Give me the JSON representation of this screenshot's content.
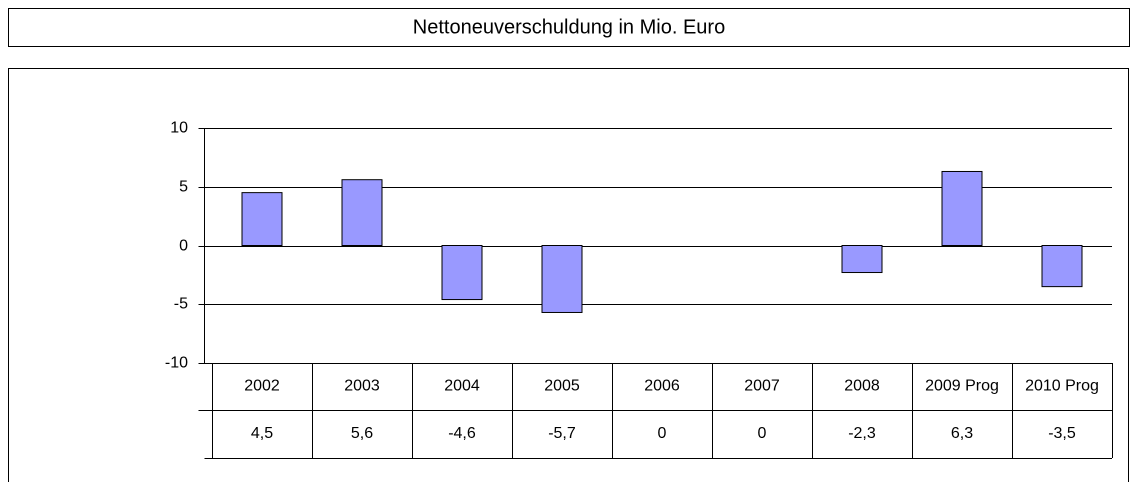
{
  "chart_data": {
    "type": "bar",
    "title": "Nettoneuverschuldung in Mio. Euro",
    "categories": [
      "2002",
      "2003",
      "2004",
      "2005",
      "2006",
      "2007",
      "2008",
      "2009 Prog",
      "2010 Prog"
    ],
    "values": [
      4.5,
      5.6,
      -4.6,
      -5.7,
      0,
      0,
      -2.3,
      6.3,
      -3.5
    ],
    "value_labels": [
      "4,5",
      "5,6",
      "-4,6",
      "-5,7",
      "0",
      "0",
      "-2,3",
      "6,3",
      "-3,5"
    ],
    "color": "#9999ff",
    "ylim": [
      -10,
      10
    ],
    "yticks": [
      10,
      5,
      0,
      -5,
      -10
    ],
    "grid": true
  }
}
